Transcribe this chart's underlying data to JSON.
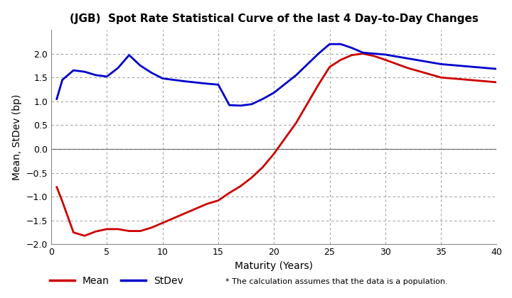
{
  "title": "(JGB)  Spot Rate Statistical Curve of the last 4 Day-to-Day Changes",
  "xlabel": "Maturity (Years)",
  "ylabel": "Mean, StDev (bp)",
  "xlim": [
    0,
    40
  ],
  "ylim": [
    -2.0,
    2.5
  ],
  "yticks": [
    -2.0,
    -1.5,
    -1.0,
    -0.5,
    0.0,
    0.5,
    1.0,
    1.5,
    2.0
  ],
  "xticks": [
    0,
    5,
    10,
    15,
    20,
    25,
    30,
    35,
    40
  ],
  "mean_color": "#cc0000",
  "stdev_color": "#0000cc",
  "mean_x": [
    0.5,
    1,
    2,
    3,
    4,
    5,
    6,
    7,
    8,
    9,
    10,
    12,
    14,
    15,
    16,
    17,
    18,
    19,
    20,
    22,
    24,
    25,
    26,
    27,
    28,
    29,
    30,
    32,
    35,
    40
  ],
  "mean_y": [
    -0.8,
    -1.1,
    -1.75,
    -1.82,
    -1.73,
    -1.68,
    -1.68,
    -1.72,
    -1.72,
    -1.65,
    -1.55,
    -1.35,
    -1.15,
    -1.08,
    -0.92,
    -0.78,
    -0.6,
    -0.38,
    -0.1,
    0.55,
    1.35,
    1.72,
    1.87,
    1.97,
    2.0,
    1.95,
    1.87,
    1.7,
    1.5,
    1.4
  ],
  "stdev_x": [
    0.5,
    1,
    2,
    3,
    4,
    5,
    6,
    7,
    8,
    9,
    10,
    12,
    14,
    15,
    16,
    17,
    18,
    19,
    20,
    22,
    24,
    25,
    26,
    27,
    28,
    29,
    30,
    32,
    35,
    40
  ],
  "stdev_y": [
    1.05,
    1.45,
    1.65,
    1.62,
    1.55,
    1.52,
    1.7,
    1.97,
    1.75,
    1.6,
    1.48,
    1.42,
    1.37,
    1.35,
    0.92,
    0.91,
    0.94,
    1.05,
    1.18,
    1.55,
    2.0,
    2.2,
    2.2,
    2.12,
    2.02,
    2.0,
    1.98,
    1.9,
    1.78,
    1.68
  ],
  "legend_note": "* The calculation assumes that the data is a population.",
  "background_color": "#ffffff",
  "line_width": 2.0
}
